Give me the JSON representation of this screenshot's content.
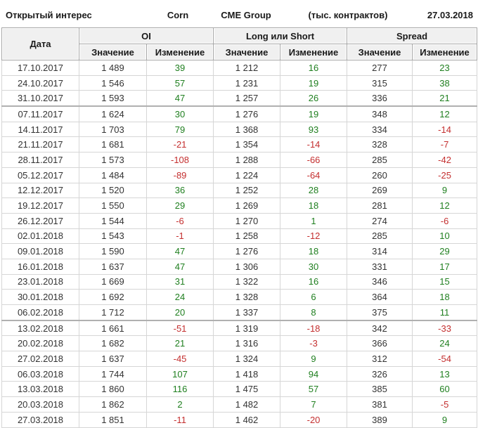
{
  "topbar": {
    "title": "Открытый интерес",
    "instrument": "Corn",
    "exchange": "CME Group",
    "units": "(тыс. контрактов)",
    "date": "27.03.2018"
  },
  "table_header": {
    "date_col": "Дата",
    "group_oi": "OI",
    "group_long_short": "Long или Short",
    "group_spread": "Spread",
    "value_label": "Значение",
    "change_label": "Изменение"
  },
  "colors": {
    "positive": "#1f7f1f",
    "negative": "#c42f2f",
    "header_bg": "#f0f0f0",
    "grid": "#d6d6d6",
    "separator_border": "#b0b0b0"
  },
  "chart_data": {
    "type": "table",
    "title": "Открытый интерес",
    "instrument": "Corn",
    "exchange": "CME Group",
    "units": "(тыс. контрактов)",
    "as_of_date": "27.03.2018",
    "columns": [
      "Дата",
      "OI Значение",
      "OI Изменение",
      "Long или Short Значение",
      "Long или Short Изменение",
      "Spread Значение",
      "Spread Изменение"
    ],
    "rows": [
      [
        "17.10.2017",
        "1 489",
        "39",
        "1 212",
        "16",
        "277",
        "23"
      ],
      [
        "24.10.2017",
        "1 546",
        "57",
        "1 231",
        "19",
        "315",
        "38"
      ],
      [
        "31.10.2017",
        "1 593",
        "47",
        "1 257",
        "26",
        "336",
        "21"
      ],
      [
        "07.11.2017",
        "1 624",
        "30",
        "1 276",
        "19",
        "348",
        "12"
      ],
      [
        "14.11.2017",
        "1 703",
        "79",
        "1 368",
        "93",
        "334",
        "-14"
      ],
      [
        "21.11.2017",
        "1 681",
        "-21",
        "1 354",
        "-14",
        "328",
        "-7"
      ],
      [
        "28.11.2017",
        "1 573",
        "-108",
        "1 288",
        "-66",
        "285",
        "-42"
      ],
      [
        "05.12.2017",
        "1 484",
        "-89",
        "1 224",
        "-64",
        "260",
        "-25"
      ],
      [
        "12.12.2017",
        "1 520",
        "36",
        "1 252",
        "28",
        "269",
        "9"
      ],
      [
        "19.12.2017",
        "1 550",
        "29",
        "1 269",
        "18",
        "281",
        "12"
      ],
      [
        "26.12.2017",
        "1 544",
        "-6",
        "1 270",
        "1",
        "274",
        "-6"
      ],
      [
        "02.01.2018",
        "1 543",
        "-1",
        "1 258",
        "-12",
        "285",
        "10"
      ],
      [
        "09.01.2018",
        "1 590",
        "47",
        "1 276",
        "18",
        "314",
        "29"
      ],
      [
        "16.01.2018",
        "1 637",
        "47",
        "1 306",
        "30",
        "331",
        "17"
      ],
      [
        "23.01.2018",
        "1 669",
        "31",
        "1 322",
        "16",
        "346",
        "15"
      ],
      [
        "30.01.2018",
        "1 692",
        "24",
        "1 328",
        "6",
        "364",
        "18"
      ],
      [
        "06.02.2018",
        "1 712",
        "20",
        "1 337",
        "8",
        "375",
        "11"
      ],
      [
        "13.02.2018",
        "1 661",
        "-51",
        "1 319",
        "-18",
        "342",
        "-33"
      ],
      [
        "20.02.2018",
        "1 682",
        "21",
        "1 316",
        "-3",
        "366",
        "24"
      ],
      [
        "27.02.2018",
        "1 637",
        "-45",
        "1 324",
        "9",
        "312",
        "-54"
      ],
      [
        "06.03.2018",
        "1 744",
        "107",
        "1 418",
        "94",
        "326",
        "13"
      ],
      [
        "13.03.2018",
        "1 860",
        "116",
        "1 475",
        "57",
        "385",
        "60"
      ],
      [
        "20.03.2018",
        "1 862",
        "2",
        "1 482",
        "7",
        "381",
        "-5"
      ],
      [
        "27.03.2018",
        "1 851",
        "-11",
        "1 462",
        "-20",
        "389",
        "9"
      ]
    ],
    "separator_dates": [
      "07.11.2017",
      "13.02.2018"
    ]
  }
}
